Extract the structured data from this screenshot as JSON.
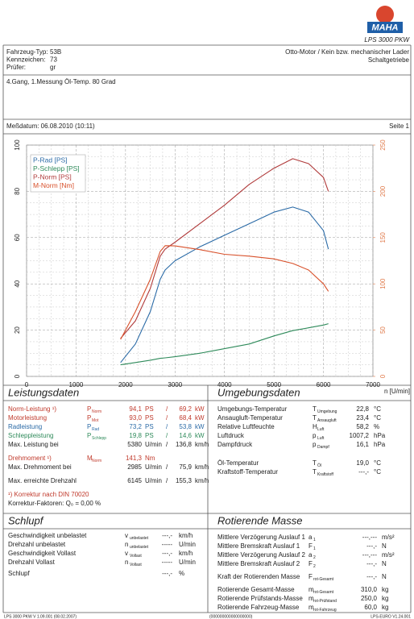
{
  "header": {
    "logo": "MAHA",
    "product": "LPS 3000 PKW"
  },
  "vehicle": {
    "rows": [
      {
        "label": "Fahrzeug-Typ:",
        "value": "53B"
      },
      {
        "label": "Kennzeichen:",
        "value": "73"
      },
      {
        "label": "Prüfer:",
        "value": "gr"
      }
    ],
    "engine": "Otto-Motor / Kein bzw. mechanischer Lader",
    "gearbox": "Schaltgetriebe"
  },
  "note": "4.Gang, 1.Messung Öl-Temp. 80 Grad",
  "date": "Meßdatum: 06.08.2010 (10:11)",
  "page": "Seite 1",
  "chart_data": {
    "type": "line",
    "x": [
      1900,
      2200,
      2500,
      2700,
      2800,
      3000,
      3500,
      4000,
      4500,
      5000,
      5380,
      5700,
      6000,
      6100
    ],
    "series": [
      {
        "name": "P-Rad [PS]",
        "color": "#2a6aa6",
        "values": [
          6,
          14,
          28,
          42,
          46,
          50,
          56,
          61,
          66,
          71,
          73.2,
          71,
          63,
          55
        ]
      },
      {
        "name": "P-Schlepp [PS]",
        "color": "#2e8a5a",
        "values": [
          5,
          6,
          7,
          7.8,
          8,
          8.5,
          10,
          12,
          14,
          17.5,
          19.8,
          21,
          22.2,
          22.8
        ]
      },
      {
        "name": "P-Norm [PS]",
        "color": "#b03a3a",
        "values": [
          16.4,
          24,
          38,
          52,
          55,
          58,
          66,
          74,
          83,
          90,
          94.1,
          92,
          86,
          80
        ]
      },
      {
        "name": "M-Norm [Nm]",
        "color": "#d8502a",
        "axis": "y2",
        "values": [
          40,
          70,
          105,
          135,
          141.3,
          141,
          137,
          132,
          130,
          127,
          122,
          115,
          100,
          92
        ]
      }
    ],
    "xlim": [
      0,
      7000
    ],
    "xticks": [
      0,
      1000,
      2000,
      3000,
      4000,
      5000,
      6000,
      7000
    ],
    "ylim": [
      0,
      100
    ],
    "yticks": [
      0,
      20,
      40,
      60,
      80,
      100
    ],
    "y2lim": [
      0,
      250
    ],
    "y2ticks": [
      0,
      50,
      100,
      150,
      200,
      250
    ],
    "y2_tick_color": "#e07a4a",
    "xlabel": "n [U/min]",
    "grid": true,
    "legend": "upper left"
  },
  "sections": [
    {
      "title": "Leistungsdaten",
      "groups": [
        [
          {
            "label": "Norm-Leistung ¹)",
            "sym": "P",
            "sub": "Norm",
            "value": "94,1",
            "unit": "PS",
            "sep": "/",
            "value2": "69,2",
            "unit2": "kW",
            "color": "#c0392b"
          },
          {
            "label": "Motorleistung",
            "sym": "P",
            "sub": "Mot",
            "value": "93,0",
            "unit": "PS",
            "sep": "/",
            "value2": "68,4",
            "unit2": "kW",
            "color": "#c0392b"
          },
          {
            "label": "Radleistung",
            "sym": "P",
            "sub": "Rad",
            "value": "73,2",
            "unit": "PS",
            "sep": "/",
            "value2": "53,8",
            "unit2": "kW",
            "color": "#2a6aa6"
          },
          {
            "label": "Schleppleistung",
            "sym": "P",
            "sub": "Schlepp",
            "value": "19,8",
            "unit": "PS",
            "sep": "/",
            "value2": "14,6",
            "unit2": "kW",
            "color": "#2e8a5a"
          },
          {
            "label": "Max. Leistung bei",
            "value": "5380",
            "unit": "U/min",
            "sep": "/",
            "value2": "136,8",
            "unit2": "km/h",
            "color": "#222222"
          }
        ],
        [
          {
            "label": "Drehmoment ¹)",
            "sym": "M",
            "sub": "Norm",
            "value": "141,3",
            "unit": "Nm",
            "color": "#c0392b"
          },
          {
            "label": "Max. Drehmoment bei",
            "value": "2985",
            "unit": "U/min",
            "sep": "/",
            "value2": "75,9",
            "unit2": "km/h",
            "color": "#222222"
          }
        ],
        [
          {
            "label": "Max. erreichte Drehzahl",
            "value": "6145",
            "unit": "U/min",
            "sep": "/",
            "value2": "155,3",
            "unit2": "km/h",
            "color": "#222222"
          }
        ],
        [
          {
            "label": "¹) Korrektur nach DIN 70020",
            "color": "#c0392b"
          },
          {
            "label": "    Korrektur-Faktoren: Q₀ =  0,00 %",
            "color": "#222222"
          }
        ]
      ]
    },
    {
      "title": "Umgebungsdaten",
      "groups": [
        [
          {
            "label": "Umgebungs-Temperatur",
            "sym": "T",
            "sub": "Umgebung",
            "value": "22,8",
            "unit": "°C"
          },
          {
            "label": "Ansaugluft-Temperatur",
            "sym": "T",
            "sub": "Ansaugluft",
            "value": "23,4",
            "unit": "°C"
          },
          {
            "label": "Relative Luftfeuchte",
            "sym": "H",
            "sub": "Luft",
            "value": "58,2",
            "unit": "%"
          },
          {
            "label": "Luftdruck",
            "sym": "p",
            "sub": "Luft",
            "value": "1007,2",
            "unit": "hPa"
          },
          {
            "label": "Dampfdruck",
            "sym": "p",
            "sub": "Dampf",
            "value": "16,1",
            "unit": "hPa"
          }
        ],
        [
          {
            "label": "Öl-Temperatur",
            "sym": "T",
            "sub": "Öl",
            "value": "19,0",
            "unit": "°C"
          },
          {
            "label": "Kraftstoff-Temperatur",
            "sym": "T",
            "sub": "Kraftstoff",
            "value": "---,-",
            "unit": "°C"
          }
        ]
      ]
    },
    {
      "title": "Schlupf",
      "groups": [
        [
          {
            "label": "Geschwindigkeit unbelastet",
            "sym": "v",
            "sub": "unbelastet",
            "value": "---,-",
            "unit": "km/h"
          },
          {
            "label": "Drehzahl unbelastet",
            "sym": "n",
            "sub": "unbelastet",
            "value": "-----",
            "unit": "U/min"
          },
          {
            "label": "Geschwindigkeit Vollast",
            "sym": "v",
            "sub": "Vollast",
            "value": "---,-",
            "unit": "km/h"
          },
          {
            "label": "Drehzahl Vollast",
            "sym": "n",
            "sub": "Vollast",
            "value": "-----",
            "unit": "U/min"
          }
        ],
        [
          {
            "label": "Schlupf",
            "value": "---,-",
            "unit": "%"
          }
        ]
      ]
    },
    {
      "title": "Rotierende Masse",
      "groups": [
        [
          {
            "label": "Mittlere Verzögerung Auslauf 1",
            "sym": "a",
            "sub": "1",
            "value": "---,---",
            "unit": "m/s²"
          },
          {
            "label": "Mittlere Bremskraft Auslauf 1",
            "sym": "F",
            "sub": "1",
            "value": "---,-",
            "unit": "N"
          },
          {
            "label": "Mittlere Verzögerung Auslauf 2",
            "sym": "a",
            "sub": "2",
            "value": "---,---",
            "unit": "m/s²"
          },
          {
            "label": "Mittlere Bremskraft Auslauf 2",
            "sym": "F",
            "sub": "2",
            "value": "---,-",
            "unit": "N"
          }
        ],
        [
          {
            "label": "Kraft der Rotierenden Masse",
            "sym": "F",
            "sub": "rot-Gesamt",
            "value": "---,-",
            "unit": "N"
          }
        ],
        [
          {
            "label": "Rotierende Gesamt-Masse",
            "sym": "m",
            "sub": "rot-Gesamt",
            "value": "310,0",
            "unit": "kg"
          },
          {
            "label": "Rotierende Prüfstands-Masse",
            "sym": "m",
            "sub": "rot-Prüfstand",
            "value": "250,0",
            "unit": "kg"
          },
          {
            "label": "Rotierende Fahrzeug-Masse",
            "sym": "m",
            "sub": "rot-Fahrzeug",
            "value": "60,0",
            "unit": "kg"
          }
        ]
      ]
    }
  ],
  "footer": [
    "LPS 3000 PKW V 1.09.001 (08.02.2007)",
    "(000000000000000000)",
    "LPS-EURO V1.24.001"
  ]
}
